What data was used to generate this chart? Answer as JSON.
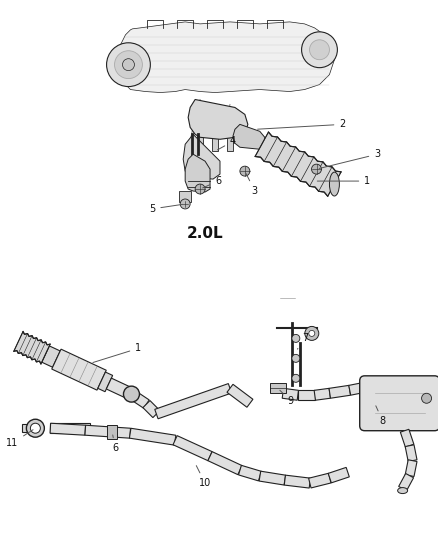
{
  "background_color": "#ffffff",
  "figsize": [
    4.38,
    5.33
  ],
  "dpi": 100,
  "top_label": "2.0L",
  "line_color": "#222222",
  "gray_line": "#888888",
  "text_color": "#111111",
  "label_fontsize": 7.0
}
